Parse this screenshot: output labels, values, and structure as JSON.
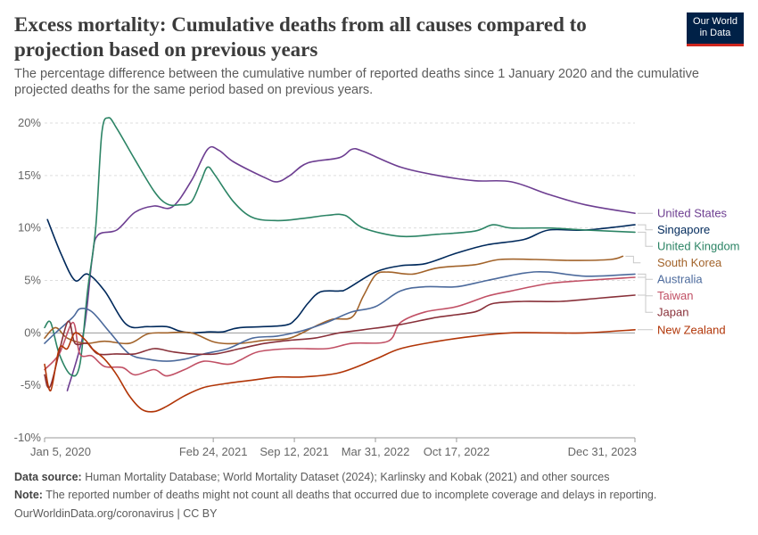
{
  "title": "Excess mortality: Cumulative deaths from all causes compared to projection based on previous years",
  "subtitle": "The percentage difference between the cumulative number of reported deaths since 1 January 2020 and the cumulative projected deaths for the same period based on previous years.",
  "logo": {
    "line1": "Our World",
    "line2": "in Data"
  },
  "footer": {
    "source_label": "Data source:",
    "source_text": "Human Mortality Database; World Mortality Dataset (2024); Karlinsky and Kobak (2021) and other sources",
    "note_label": "Note:",
    "note_text": "The reported number of deaths might not count all deaths that occurred due to incomplete coverage and delays in reporting.",
    "credit": "OurWorldinData.org/coronavirus | CC BY"
  },
  "chart_data": {
    "type": "line",
    "title": "Excess mortality: Cumulative deaths from all causes compared to projection based on previous years",
    "x_ticks": [
      "2020-01-05",
      "2021-02-24",
      "2021-09-12",
      "2022-03-31",
      "2022-10-17",
      "2023-12-31"
    ],
    "x_tick_labels": [
      "Jan 5, 2020",
      "Feb 24, 2021",
      "Sep 12, 2021",
      "Mar 31, 2022",
      "Oct 17, 2022",
      "Dec 31, 2023"
    ],
    "xlim": [
      "2020-01-05",
      "2023-12-31"
    ],
    "y_ticks": [
      -10,
      -5,
      0,
      5,
      10,
      15,
      20
    ],
    "y_tick_labels": [
      "-10%",
      "-5%",
      "0%",
      "5%",
      "10%",
      "15%",
      "20%"
    ],
    "ylim": [
      -10,
      20
    ],
    "grid": "horizontal dashed",
    "legend": "right",
    "series": [
      {
        "name": "United States",
        "color": "#6d3e91",
        "points": [
          [
            "2020-03-01",
            -5.5
          ],
          [
            "2020-04-10",
            0
          ],
          [
            "2020-05-01",
            7
          ],
          [
            "2020-05-15",
            9.3
          ],
          [
            "2020-07-01",
            9.8
          ],
          [
            "2020-08-15",
            11.5
          ],
          [
            "2020-10-01",
            12.1
          ],
          [
            "2020-11-15",
            12
          ],
          [
            "2021-01-01",
            14.5
          ],
          [
            "2021-02-10",
            17.5
          ],
          [
            "2021-03-10",
            17.4
          ],
          [
            "2021-04-15",
            16.3
          ],
          [
            "2021-07-01",
            14.8
          ],
          [
            "2021-08-01",
            14.4
          ],
          [
            "2021-09-01",
            15
          ],
          [
            "2021-10-15",
            16.2
          ],
          [
            "2022-01-01",
            16.7
          ],
          [
            "2022-02-01",
            17.5
          ],
          [
            "2022-03-01",
            17.3
          ],
          [
            "2022-06-01",
            15.8
          ],
          [
            "2022-09-01",
            15
          ],
          [
            "2022-12-01",
            14.5
          ],
          [
            "2023-03-01",
            14.4
          ],
          [
            "2023-06-01",
            13.2
          ],
          [
            "2023-09-01",
            12.2
          ],
          [
            "2023-12-31",
            11.4
          ]
        ]
      },
      {
        "name": "Singapore",
        "color": "#00295b",
        "points": [
          [
            "2020-01-12",
            10.8
          ],
          [
            "2020-02-15",
            7.5
          ],
          [
            "2020-03-20",
            5
          ],
          [
            "2020-04-20",
            5.6
          ],
          [
            "2020-06-01",
            4
          ],
          [
            "2020-07-25",
            0.8
          ],
          [
            "2020-09-15",
            0.6
          ],
          [
            "2020-11-01",
            0.6
          ],
          [
            "2020-12-01",
            0.2
          ],
          [
            "2021-01-01",
            0
          ],
          [
            "2021-02-15",
            0.1
          ],
          [
            "2021-03-20",
            0.1
          ],
          [
            "2021-05-01",
            0.5
          ],
          [
            "2021-08-15",
            0.7
          ],
          [
            "2021-09-15",
            1.3
          ],
          [
            "2021-10-15",
            2.8
          ],
          [
            "2021-11-15",
            3.9
          ],
          [
            "2022-01-01",
            4
          ],
          [
            "2022-01-20",
            4.2
          ],
          [
            "2022-03-31",
            5.8
          ],
          [
            "2022-06-01",
            6.4
          ],
          [
            "2022-08-01",
            6.6
          ],
          [
            "2022-10-17",
            7.6
          ],
          [
            "2023-01-01",
            8.4
          ],
          [
            "2023-04-01",
            8.9
          ],
          [
            "2023-06-01",
            9.8
          ],
          [
            "2023-09-01",
            9.8
          ],
          [
            "2023-12-31",
            10.3
          ]
        ]
      },
      {
        "name": "United Kingdom",
        "color": "#2c8465",
        "points": [
          [
            "2020-01-05",
            0.5
          ],
          [
            "2020-01-20",
            1
          ],
          [
            "2020-02-10",
            -2
          ],
          [
            "2020-03-10",
            -4
          ],
          [
            "2020-04-01",
            -3
          ],
          [
            "2020-04-20",
            4
          ],
          [
            "2020-05-10",
            10
          ],
          [
            "2020-05-25",
            19
          ],
          [
            "2020-06-10",
            20.5
          ],
          [
            "2020-07-01",
            19.5
          ],
          [
            "2020-08-15",
            16.5
          ],
          [
            "2020-10-01",
            13.5
          ],
          [
            "2020-11-01",
            12.3
          ],
          [
            "2020-12-01",
            12.2
          ],
          [
            "2021-01-01",
            12.5
          ],
          [
            "2021-01-25",
            14.5
          ],
          [
            "2021-02-10",
            15.8
          ],
          [
            "2021-03-01",
            15
          ],
          [
            "2021-04-15",
            12.5
          ],
          [
            "2021-06-01",
            11
          ],
          [
            "2021-08-01",
            10.7
          ],
          [
            "2021-10-01",
            10.9
          ],
          [
            "2021-12-01",
            11.2
          ],
          [
            "2022-01-15",
            11.2
          ],
          [
            "2022-03-01",
            10
          ],
          [
            "2022-06-01",
            9.2
          ],
          [
            "2022-09-01",
            9.4
          ],
          [
            "2022-12-01",
            9.7
          ],
          [
            "2023-01-15",
            10.3
          ],
          [
            "2023-03-01",
            10
          ],
          [
            "2023-06-01",
            10
          ],
          [
            "2023-09-01",
            9.8
          ],
          [
            "2023-12-31",
            9.6
          ]
        ]
      },
      {
        "name": "South Korea",
        "color": "#a2632a",
        "points": [
          [
            "2020-01-05",
            -0.5
          ],
          [
            "2020-02-01",
            0.5
          ],
          [
            "2020-03-01",
            -0.5
          ],
          [
            "2020-04-15",
            -1
          ],
          [
            "2020-06-01",
            -0.8
          ],
          [
            "2020-08-01",
            -1
          ],
          [
            "2020-09-15",
            -0.1
          ],
          [
            "2020-11-01",
            0
          ],
          [
            "2021-01-01",
            0
          ],
          [
            "2021-03-01",
            -0.9
          ],
          [
            "2021-05-01",
            -1
          ],
          [
            "2021-07-01",
            -0.7
          ],
          [
            "2021-09-01",
            -0.5
          ],
          [
            "2021-11-01",
            0.6
          ],
          [
            "2021-12-15",
            1.3
          ],
          [
            "2022-02-01",
            1.5
          ],
          [
            "2022-03-01",
            3.5
          ],
          [
            "2022-03-31",
            5.5
          ],
          [
            "2022-05-01",
            5.8
          ],
          [
            "2022-07-01",
            5.6
          ],
          [
            "2022-09-01",
            6.2
          ],
          [
            "2022-12-01",
            6.5
          ],
          [
            "2023-02-01",
            7
          ],
          [
            "2023-05-01",
            7
          ],
          [
            "2023-08-01",
            6.9
          ],
          [
            "2023-11-01",
            7
          ],
          [
            "2023-12-01",
            7.3
          ]
        ]
      },
      {
        "name": "Australia",
        "color": "#4c6a9c",
        "points": [
          [
            "2020-01-05",
            -1
          ],
          [
            "2020-02-01",
            0
          ],
          [
            "2020-03-15",
            1.5
          ],
          [
            "2020-04-01",
            2.3
          ],
          [
            "2020-05-01",
            2
          ],
          [
            "2020-06-15",
            0
          ],
          [
            "2020-08-01",
            -2
          ],
          [
            "2020-09-15",
            -2.5
          ],
          [
            "2020-11-01",
            -2.7
          ],
          [
            "2020-12-15",
            -2.5
          ],
          [
            "2021-02-01",
            -2
          ],
          [
            "2021-04-01",
            -1.5
          ],
          [
            "2021-06-01",
            -0.5
          ],
          [
            "2021-08-01",
            -0.3
          ],
          [
            "2021-10-01",
            0.2
          ],
          [
            "2021-12-01",
            1
          ],
          [
            "2022-02-01",
            2
          ],
          [
            "2022-03-31",
            2.5
          ],
          [
            "2022-06-01",
            4
          ],
          [
            "2022-08-01",
            4.4
          ],
          [
            "2022-10-17",
            4.4
          ],
          [
            "2023-01-01",
            5
          ],
          [
            "2023-04-01",
            5.7
          ],
          [
            "2023-06-01",
            5.8
          ],
          [
            "2023-09-01",
            5.4
          ],
          [
            "2023-12-31",
            5.6
          ]
        ]
      },
      {
        "name": "Taiwan",
        "color": "#c15065",
        "points": [
          [
            "2020-01-05",
            -3.5
          ],
          [
            "2020-02-10",
            -2
          ],
          [
            "2020-03-15",
            1
          ],
          [
            "2020-04-01",
            -2
          ],
          [
            "2020-05-01",
            -2.2
          ],
          [
            "2020-06-01",
            -3.2
          ],
          [
            "2020-07-15",
            -3.3
          ],
          [
            "2020-08-15",
            -4
          ],
          [
            "2020-10-01",
            -3.5
          ],
          [
            "2020-11-01",
            -4.1
          ],
          [
            "2020-12-15",
            -3.5
          ],
          [
            "2021-02-01",
            -2.7
          ],
          [
            "2021-04-01",
            -3
          ],
          [
            "2021-05-01",
            -2.6
          ],
          [
            "2021-06-15",
            -1.8
          ],
          [
            "2021-09-01",
            -1.5
          ],
          [
            "2021-12-01",
            -1.5
          ],
          [
            "2022-02-01",
            -1
          ],
          [
            "2022-05-01",
            -0.8
          ],
          [
            "2022-06-01",
            1
          ],
          [
            "2022-08-01",
            2
          ],
          [
            "2022-10-17",
            2.5
          ],
          [
            "2023-01-01",
            3.5
          ],
          [
            "2023-03-01",
            4
          ],
          [
            "2023-06-01",
            4.7
          ],
          [
            "2023-09-01",
            5
          ],
          [
            "2023-12-31",
            5.3
          ]
        ]
      },
      {
        "name": "Japan",
        "color": "#883039",
        "points": [
          [
            "2020-01-05",
            -4
          ],
          [
            "2020-01-20",
            -5
          ],
          [
            "2020-03-01",
            1
          ],
          [
            "2020-03-20",
            -1
          ],
          [
            "2020-04-20",
            -1
          ],
          [
            "2020-05-15",
            -2
          ],
          [
            "2020-07-01",
            -2
          ],
          [
            "2020-08-15",
            -2
          ],
          [
            "2020-10-01",
            -1.5
          ],
          [
            "2020-11-15",
            -1.8
          ],
          [
            "2021-01-01",
            -2
          ],
          [
            "2021-03-01",
            -2
          ],
          [
            "2021-05-01",
            -1.5
          ],
          [
            "2021-07-01",
            -1
          ],
          [
            "2021-09-01",
            -0.7
          ],
          [
            "2021-11-01",
            -0.5
          ],
          [
            "2022-01-01",
            0
          ],
          [
            "2022-03-01",
            0.3
          ],
          [
            "2022-06-01",
            0.8
          ],
          [
            "2022-09-01",
            1.5
          ],
          [
            "2022-12-01",
            2
          ],
          [
            "2023-01-15",
            2.8
          ],
          [
            "2023-04-01",
            3
          ],
          [
            "2023-07-01",
            3
          ],
          [
            "2023-10-01",
            3.3
          ],
          [
            "2023-12-31",
            3.6
          ]
        ]
      },
      {
        "name": "New Zealand",
        "color": "#b13507",
        "points": [
          [
            "2020-01-05",
            -3
          ],
          [
            "2020-01-20",
            -5.5
          ],
          [
            "2020-02-10",
            -1.5
          ],
          [
            "2020-03-01",
            -1.5
          ],
          [
            "2020-03-20",
            0
          ],
          [
            "2020-04-15",
            -0.7
          ],
          [
            "2020-05-01",
            -1.5
          ],
          [
            "2020-06-01",
            -2.5
          ],
          [
            "2020-07-01",
            -4
          ],
          [
            "2020-08-01",
            -6
          ],
          [
            "2020-09-01",
            -7.3
          ],
          [
            "2020-10-01",
            -7.5
          ],
          [
            "2020-11-01",
            -7
          ],
          [
            "2020-12-15",
            -6
          ],
          [
            "2021-02-01",
            -5.2
          ],
          [
            "2021-04-01",
            -4.8
          ],
          [
            "2021-06-01",
            -4.5
          ],
          [
            "2021-08-01",
            -4.2
          ],
          [
            "2021-10-01",
            -4.2
          ],
          [
            "2022-01-01",
            -3.8
          ],
          [
            "2022-03-31",
            -2.5
          ],
          [
            "2022-06-01",
            -1.5
          ],
          [
            "2022-09-01",
            -0.8
          ],
          [
            "2022-12-01",
            -0.3
          ],
          [
            "2023-03-01",
            0
          ],
          [
            "2023-06-01",
            0
          ],
          [
            "2023-09-01",
            0
          ],
          [
            "2023-12-31",
            0.3
          ]
        ]
      }
    ],
    "legend_entries": [
      "United States",
      "Singapore",
      "United Kingdom",
      "South Korea",
      "Australia",
      "Taiwan",
      "Japan",
      "New Zealand"
    ]
  }
}
